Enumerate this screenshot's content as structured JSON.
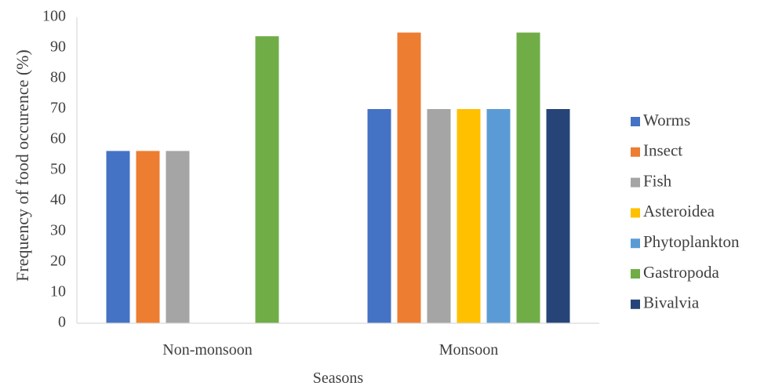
{
  "chart_data": {
    "type": "bar",
    "title": "",
    "xlabel": "Seasons",
    "ylabel": "Frequency of food occurence (%)",
    "ylim": [
      0,
      100
    ],
    "yticks": [
      "0",
      "10",
      "20",
      "30",
      "40",
      "50",
      "60",
      "70",
      "80",
      "90",
      "100"
    ],
    "grid": false,
    "legend_position": "right",
    "categories": [
      "Non-monsoon",
      "Monsoon"
    ],
    "series": [
      {
        "name": "Worms",
        "color": "#4472C4",
        "values": [
          56.3,
          70
        ]
      },
      {
        "name": "Insect",
        "color": "#ED7D31",
        "values": [
          56.3,
          95
        ]
      },
      {
        "name": "Fish",
        "color": "#A5A5A5",
        "values": [
          56.3,
          70
        ]
      },
      {
        "name": "Asteroidea",
        "color": "#FFC000",
        "values": [
          0,
          70
        ]
      },
      {
        "name": "Phytoplankton",
        "color": "#5B9BD5",
        "values": [
          0,
          70
        ]
      },
      {
        "name": "Gastropoda",
        "color": "#70AD47",
        "values": [
          93.8,
          95
        ]
      },
      {
        "name": "Bivalvia",
        "color": "#264478",
        "values": [
          0,
          70
        ]
      }
    ]
  }
}
